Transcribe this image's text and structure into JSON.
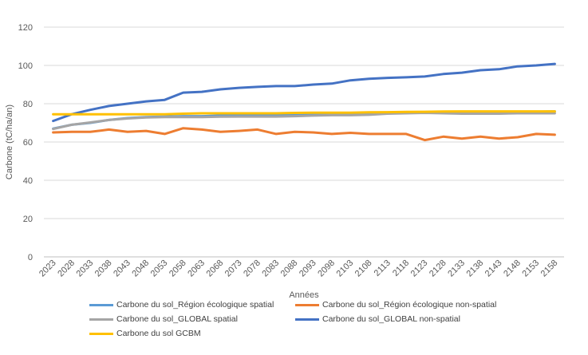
{
  "chart_data": {
    "type": "line",
    "title": "",
    "xlabel": "Années",
    "ylabel": "Carbone (tC/ha/an)",
    "ylim": [
      0,
      120
    ],
    "yticks": [
      0,
      20,
      40,
      60,
      80,
      100,
      120
    ],
    "grid": "horizontal",
    "legend_position": "bottom",
    "x": [
      "2023",
      "2028",
      "2033",
      "2038",
      "2043",
      "2048",
      "2053",
      "2058",
      "2063",
      "2068",
      "2073",
      "2078",
      "2083",
      "2088",
      "2093",
      "2098",
      "2103",
      "2108",
      "2113",
      "2118",
      "2123",
      "2128",
      "2133",
      "2138",
      "2143",
      "2148",
      "2153",
      "2158"
    ],
    "series": [
      {
        "name": "Carbone du sol_Région écologique spatial",
        "color": "#5B9BD5",
        "values": [
          67,
          69,
          70,
          71.5,
          72.5,
          73,
          73.3,
          73.5,
          73.5,
          73.8,
          74,
          74,
          74,
          74,
          74.3,
          74.5,
          74.8,
          75,
          75.1,
          75.2,
          75.3,
          75.4,
          75.5,
          75.5,
          75.6,
          75.7,
          75.8,
          76
        ]
      },
      {
        "name": "Carbone du sol_Région écologique non-spatial",
        "color": "#ED7D31",
        "values": [
          65,
          65.3,
          65.3,
          66.5,
          65.3,
          65.8,
          64.2,
          67.2,
          66.5,
          65.3,
          65.8,
          66.5,
          64.2,
          65.3,
          65,
          64.2,
          64.8,
          64.2,
          64.2,
          64.2,
          61,
          62.8,
          61.8,
          62.8,
          61.8,
          62.5,
          64.2,
          63.8
        ]
      },
      {
        "name": "Carbone du sol_GLOBAL spatial",
        "color": "#A5A5A5",
        "values": [
          66.8,
          69,
          70.2,
          71.5,
          72.3,
          72.8,
          73,
          73,
          73,
          73.2,
          73.3,
          73.3,
          73.3,
          73.5,
          73.8,
          74,
          74,
          74.2,
          74.8,
          75,
          75.2,
          75,
          74.8,
          74.8,
          74.8,
          75,
          75,
          75
        ]
      },
      {
        "name": "Carbone du sol_GLOBAL non-spatial",
        "color": "#4472C4",
        "values": [
          71,
          74.5,
          76.8,
          78.8,
          80,
          81.2,
          82,
          85.8,
          86.2,
          87.5,
          88.3,
          88.8,
          89.2,
          89.2,
          90,
          90.5,
          92.2,
          93,
          93.5,
          93.8,
          94.2,
          95.5,
          96.2,
          97.5,
          98,
          99.5,
          100,
          100.8
        ]
      },
      {
        "name": "Carbone du sol GCBM",
        "color": "#FFC000",
        "values": [
          74.5,
          74.5,
          74.5,
          74.5,
          74.5,
          74.5,
          74.5,
          74.8,
          75,
          75,
          75,
          75,
          75,
          75.2,
          75.3,
          75.3,
          75.3,
          75.5,
          75.6,
          75.7,
          75.8,
          75.9,
          76,
          76,
          76,
          76,
          76,
          76
        ]
      }
    ]
  }
}
